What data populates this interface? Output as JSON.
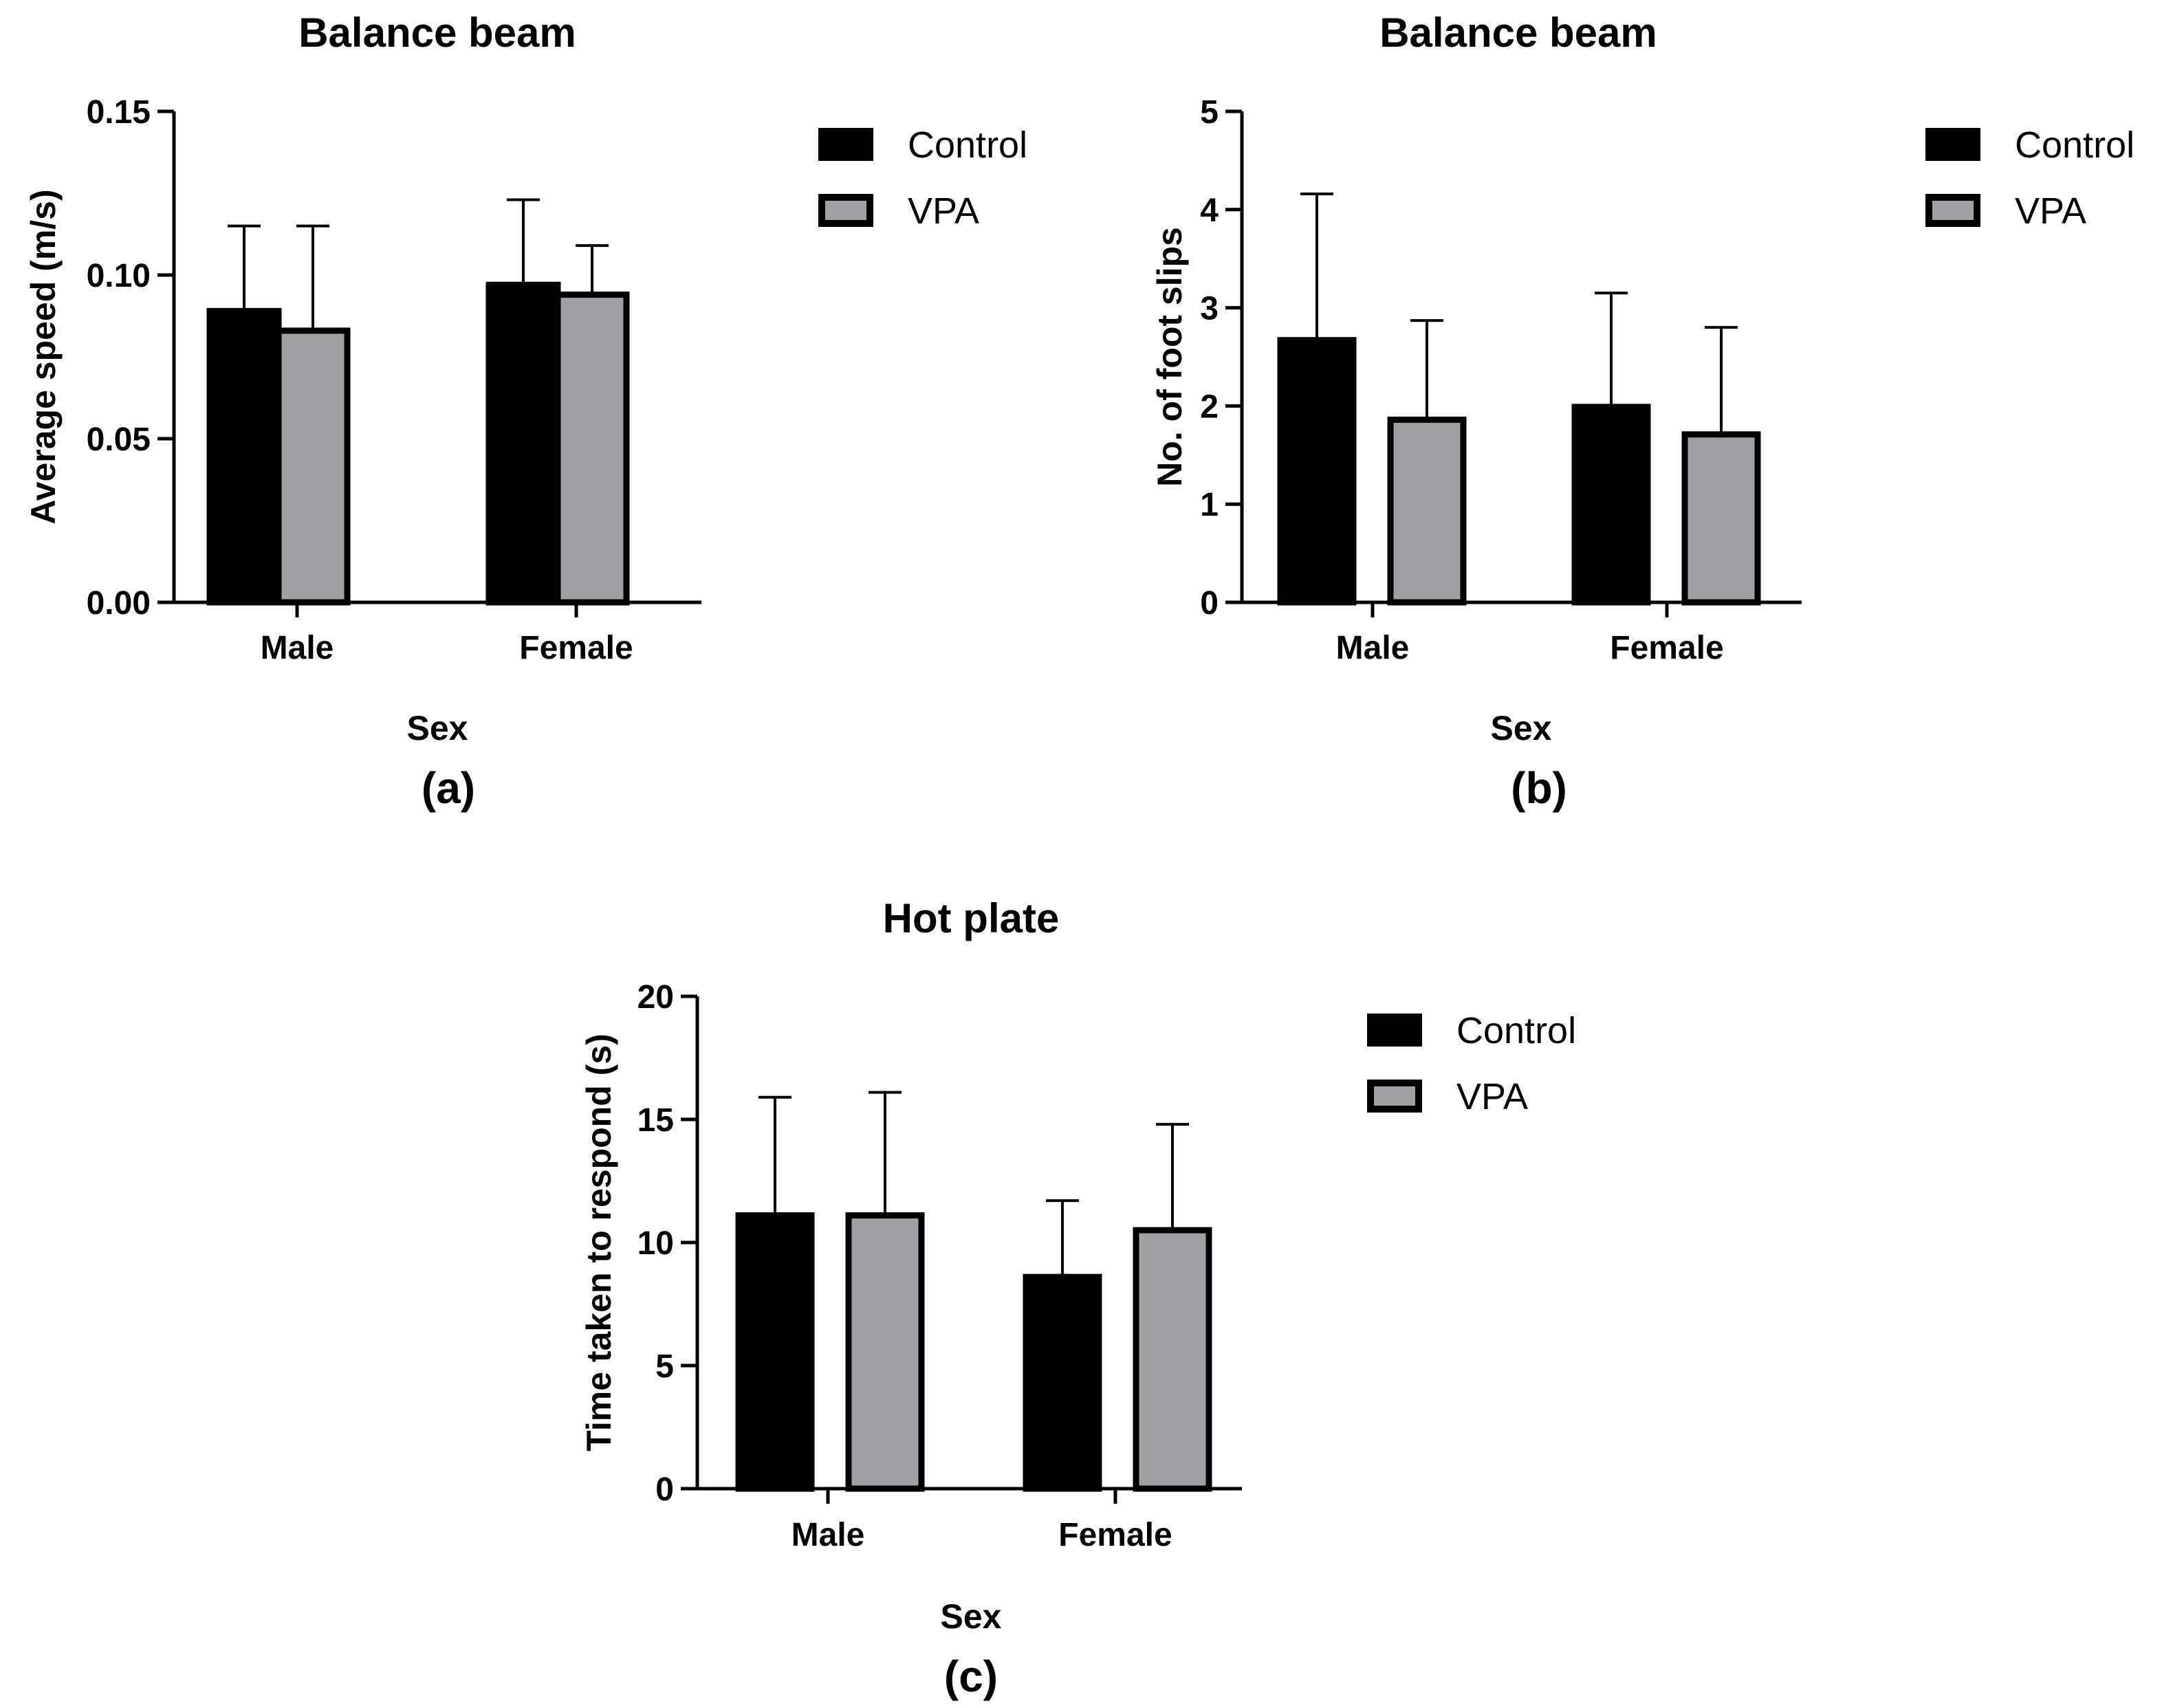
{
  "colors": {
    "control": "#000000",
    "vpa": "#a0a0a4",
    "axis": "#000000"
  },
  "chart_data": [
    {
      "type": "bar",
      "panel_label": "(a)",
      "title": "Balance beam",
      "xlabel": "Sex",
      "ylabel": "Average speed (m/s)",
      "ylim": [
        0,
        0.15
      ],
      "yticks": [
        "0.00",
        "0.05",
        "0.10",
        "0.15"
      ],
      "categories": [
        "Male",
        "Female"
      ],
      "series": [
        {
          "name": "Control",
          "values": [
            0.089,
            0.097
          ],
          "errors": [
            0.026,
            0.026
          ]
        },
        {
          "name": "VPA",
          "values": [
            0.083,
            0.094
          ],
          "errors": [
            0.032,
            0.015
          ]
        }
      ],
      "legend": "top-right"
    },
    {
      "type": "bar",
      "panel_label": "(b)",
      "title": "Balance beam",
      "xlabel": "Sex",
      "ylabel": "No. of foot slips",
      "ylim": [
        0,
        5
      ],
      "yticks": [
        "0",
        "1",
        "2",
        "3",
        "4",
        "5"
      ],
      "categories": [
        "Male",
        "Female"
      ],
      "series": [
        {
          "name": "Control",
          "values": [
            2.67,
            1.99
          ],
          "errors": [
            1.49,
            1.16
          ]
        },
        {
          "name": "VPA",
          "values": [
            1.86,
            1.71
          ],
          "errors": [
            1.01,
            1.09
          ]
        }
      ],
      "legend": "top-right"
    },
    {
      "type": "bar",
      "panel_label": "(c)",
      "title": "Hot plate",
      "xlabel": "Sex",
      "ylabel": "Time taken to respond (s)",
      "ylim": [
        0,
        20
      ],
      "yticks": [
        "0",
        "5",
        "10",
        "15",
        "20"
      ],
      "categories": [
        "Male",
        "Female"
      ],
      "series": [
        {
          "name": "Control",
          "values": [
            11.1,
            8.6
          ],
          "errors": [
            4.8,
            3.1
          ]
        },
        {
          "name": "VPA",
          "values": [
            11.1,
            10.5
          ],
          "errors": [
            5.0,
            4.3
          ]
        }
      ],
      "legend": "top-right"
    }
  ]
}
